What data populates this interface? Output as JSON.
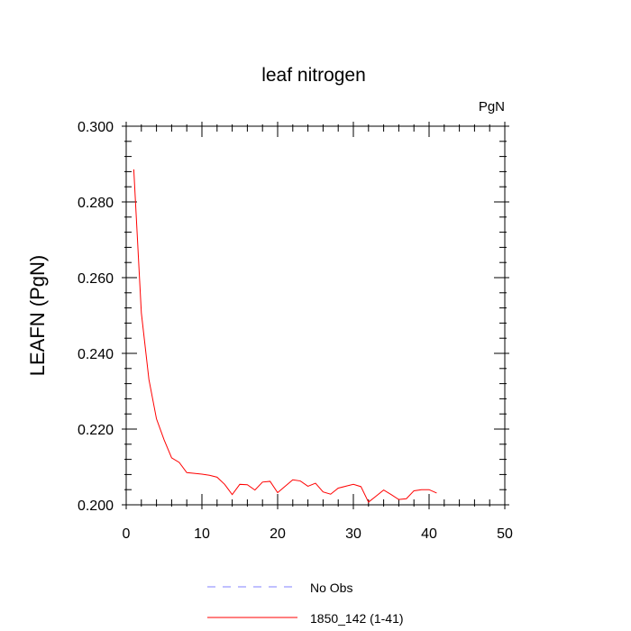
{
  "chart_data": {
    "type": "line",
    "title": "leaf nitrogen",
    "units_label": "PgN",
    "ylabel": "LEAFN  (PgN)",
    "xlabel": "",
    "xlim": [
      0,
      50
    ],
    "ylim": [
      0.2,
      0.3
    ],
    "x_ticks": [
      0,
      10,
      20,
      30,
      40,
      50
    ],
    "x_tick_labels": [
      "0",
      "10",
      "20",
      "30",
      "40",
      "50"
    ],
    "y_ticks": [
      0.2,
      0.22,
      0.24,
      0.26,
      0.28,
      0.3
    ],
    "y_tick_labels": [
      "0.200",
      "0.220",
      "0.240",
      "0.260",
      "0.280",
      "0.300"
    ],
    "grid": false,
    "legend_position": "bottom",
    "series": [
      {
        "name": "1850_142 (1-41)",
        "color": "#ff0000",
        "style": "solid",
        "x": [
          1,
          2,
          3,
          4,
          5,
          6,
          7,
          8,
          9,
          10,
          11,
          12,
          13,
          14,
          15,
          16,
          17,
          18,
          19,
          20,
          21,
          22,
          23,
          24,
          25,
          26,
          27,
          28,
          29,
          30,
          31,
          32,
          33,
          34,
          35,
          36,
          37,
          38,
          39,
          40,
          41
        ],
        "values": [
          0.2886,
          0.2507,
          0.2331,
          0.2227,
          0.2172,
          0.2124,
          0.2112,
          0.2085,
          0.2083,
          0.2081,
          0.2078,
          0.2073,
          0.2054,
          0.2027,
          0.2054,
          0.2053,
          0.2039,
          0.206,
          0.2062,
          0.2032,
          0.2049,
          0.2066,
          0.2063,
          0.2049,
          0.2057,
          0.2034,
          0.2028,
          0.2044,
          0.2049,
          0.2054,
          0.2048,
          0.2007,
          0.2023,
          0.2039,
          0.2027,
          0.2014,
          0.2016,
          0.2037,
          0.204,
          0.204,
          0.2031
        ]
      },
      {
        "name": "No Obs",
        "color": "#8080ff",
        "style": "dashed",
        "x": [],
        "values": []
      }
    ]
  }
}
